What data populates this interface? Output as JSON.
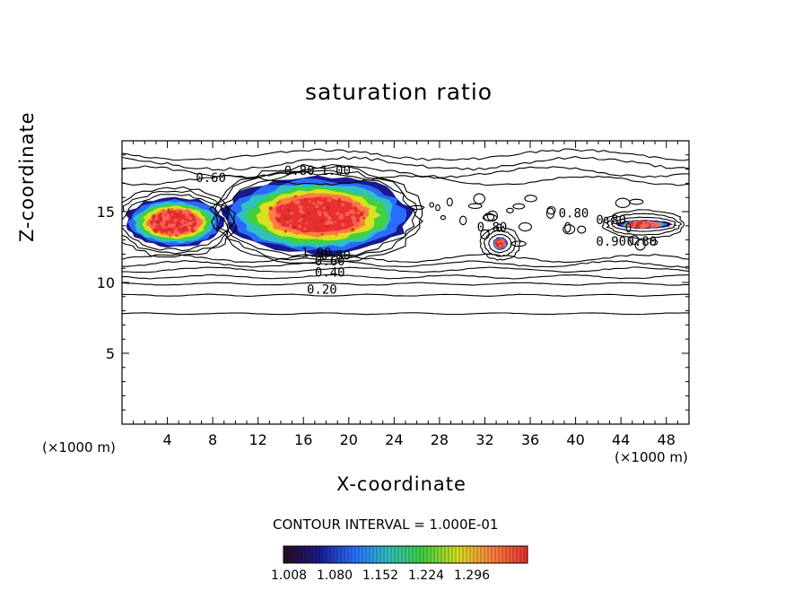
{
  "chart_data": {
    "type": "heatmap",
    "title": "saturation ratio",
    "xlabel": "X-coordinate",
    "ylabel": "Z-coordinate",
    "x_unit_label": "(×1000 m)",
    "xlim": [
      0,
      50
    ],
    "ylim": [
      0,
      20
    ],
    "x_ticks": [
      4,
      8,
      12,
      16,
      20,
      24,
      28,
      32,
      36,
      40,
      44,
      48
    ],
    "y_ticks": [
      5,
      10,
      15
    ],
    "contour_interval_text": "CONTOUR INTERVAL = 1.000E-01",
    "contour_labels": [
      "0.60",
      "0.80",
      "1.00",
      "1.00",
      "0.80",
      "0.60",
      "0.40",
      "0.20",
      "0.80",
      "0.80",
      "0.80",
      "0.90",
      "0.80"
    ],
    "colorbar": {
      "ticks": [
        "1.008",
        "1.080",
        "1.152",
        "1.224",
        "1.296"
      ],
      "colors": [
        "#2a0a1e",
        "#1a1a8c",
        "#2a6cff",
        "#30c0c0",
        "#40d040",
        "#d8e020",
        "#ff8040",
        "#e83030"
      ]
    },
    "shaded_regions": [
      {
        "name": "left supersaturated layer",
        "x_range": [
          0.3,
          9
        ],
        "z_range": [
          12.5,
          16
        ],
        "max_value": 1.3
      },
      {
        "name": "central supersaturated core",
        "x_range": [
          9,
          25.5
        ],
        "z_range": [
          12,
          17.5
        ],
        "max_value": 1.3
      },
      {
        "name": "right thin layer",
        "x_range": [
          43.5,
          48.5
        ],
        "z_range": [
          13.8,
          14.4
        ],
        "max_value": 1.1
      },
      {
        "name": "isolated cell",
        "x_range": [
          32.7,
          34
        ],
        "z_range": [
          12.3,
          13.2
        ],
        "max_value": 1.2
      }
    ]
  }
}
